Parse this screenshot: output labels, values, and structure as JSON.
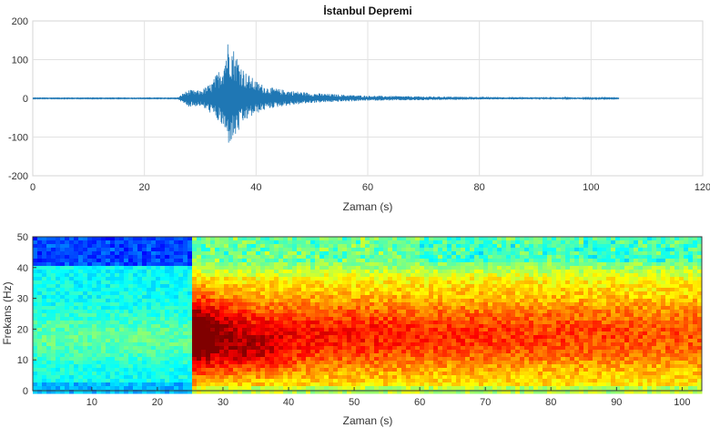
{
  "chart_data": [
    {
      "type": "line",
      "title": "İstanbul Depremi",
      "xlabel": "Zaman (s)",
      "ylabel": "",
      "xlim": [
        0,
        120
      ],
      "ylim": [
        -200,
        200
      ],
      "xticks": [
        "0",
        "20",
        "40",
        "60",
        "80",
        "100",
        "120"
      ],
      "yticks": [
        "200",
        "100",
        "0",
        "-100",
        "-200"
      ],
      "grid": true,
      "series": [
        {
          "color": "#1f77b4",
          "signal_range": [
            0,
            105
          ],
          "x": [
            0,
            26,
            27,
            28,
            30,
            32,
            34,
            35,
            36,
            37,
            38,
            40,
            42,
            45,
            50,
            55,
            60,
            70,
            80,
            90,
            100,
            105
          ],
          "envelope_pos": [
            1,
            1,
            15,
            22,
            20,
            40,
            90,
            155,
            130,
            100,
            70,
            45,
            30,
            22,
            14,
            10,
            7,
            5,
            4,
            3,
            2,
            1
          ],
          "envelope_neg": [
            1,
            1,
            15,
            22,
            20,
            40,
            75,
            120,
            110,
            85,
            60,
            40,
            28,
            20,
            12,
            9,
            6,
            5,
            3,
            2,
            2,
            1
          ]
        }
      ]
    },
    {
      "type": "heatmap",
      "title": "",
      "xlabel": "Zaman (s)",
      "ylabel": "Frekans (Hz)",
      "xlim": [
        1,
        103
      ],
      "ylim": [
        0,
        50
      ],
      "xticks": [
        "10",
        "20",
        "30",
        "40",
        "50",
        "60",
        "70",
        "80",
        "90",
        "100"
      ],
      "yticks": [
        "50",
        "40",
        "30",
        "20",
        "10",
        "0"
      ],
      "colormap": "jet",
      "onset_time": 25.5,
      "peak_time": 35,
      "peak_freq": 12
    }
  ]
}
